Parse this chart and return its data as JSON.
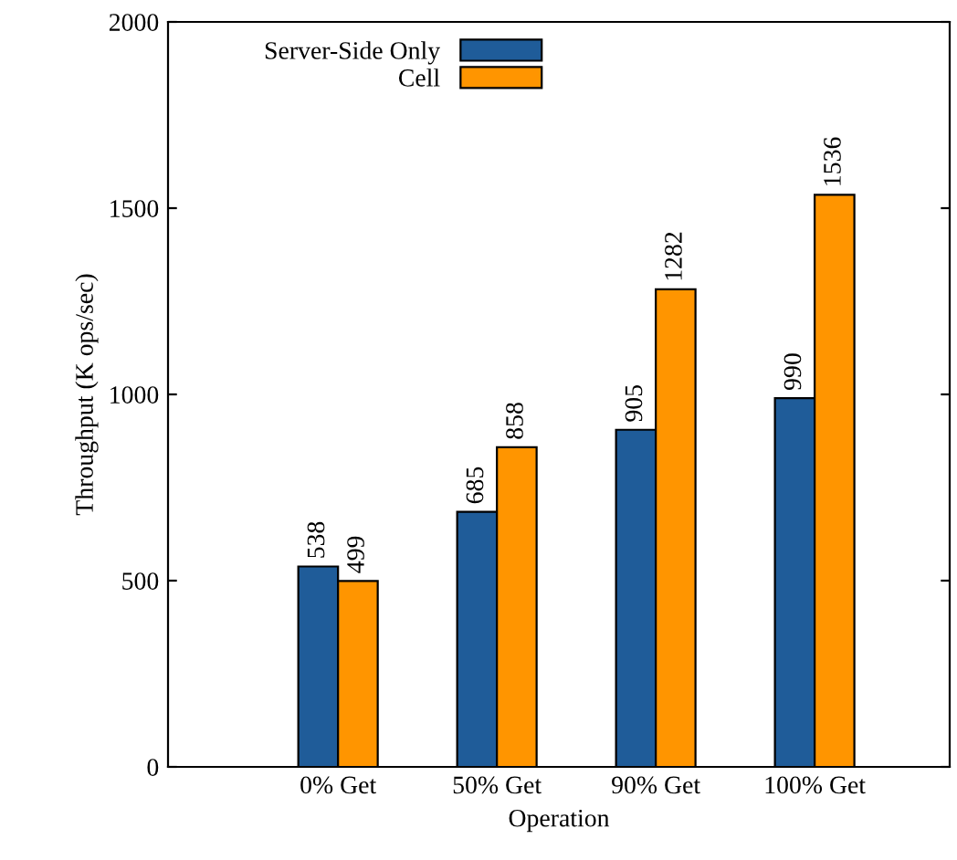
{
  "chart_data": {
    "type": "bar",
    "xlabel": "Operation",
    "ylabel": "Throughput (K ops/sec)",
    "categories": [
      "0% Get",
      "50% Get",
      "90% Get",
      "100% Get"
    ],
    "series": [
      {
        "name": "Server-Side Only",
        "color": "#1f5c99",
        "values": [
          538,
          685,
          905,
          990
        ]
      },
      {
        "name": "Cell",
        "color": "#ff9500",
        "values": [
          499,
          858,
          1282,
          1536
        ]
      }
    ],
    "ylim": [
      0,
      2000
    ],
    "yticks": [
      0,
      500,
      1000,
      1500,
      2000
    ],
    "data_labels": true,
    "legend": "top left",
    "grid": false
  }
}
